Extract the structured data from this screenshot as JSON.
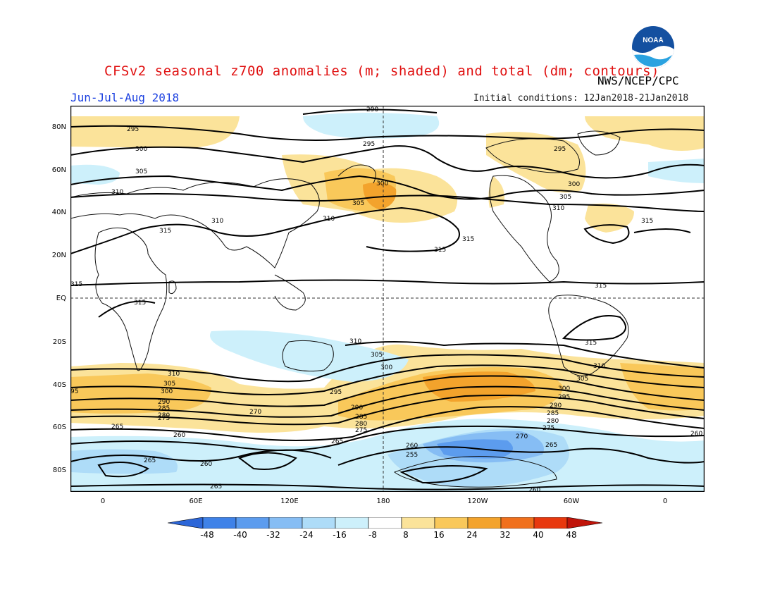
{
  "header": {
    "title": "CFSv2 seasonal z700 anomalies (m; shaded) and total (dm; contours)",
    "agency": "NWS/NCEP/CPC",
    "season": "Jun-Jul-Aug 2018",
    "initial_conditions": "Initial conditions: 12Jan2018-21Jan2018",
    "logo_text": "NOAA"
  },
  "map": {
    "lat_labels": [
      "80N",
      "60N",
      "40N",
      "20N",
      "EQ",
      "20S",
      "40S",
      "60S",
      "80S"
    ],
    "lon_labels": [
      "0",
      "60E",
      "120E",
      "180",
      "120W",
      "60W",
      "0"
    ],
    "contour_labels": {
      "c290": "290",
      "c295": "295",
      "c300": "300",
      "c305": "305",
      "c310": "310",
      "c315": "315",
      "c285": "285",
      "c280": "280",
      "c275": "275",
      "c270": "270",
      "c265": "265",
      "c260": "260",
      "c255": "255",
      "c95": "95"
    }
  },
  "colorbar": {
    "ticks": [
      "-48",
      "-40",
      "-32",
      "-24",
      "-16",
      "-8",
      "8",
      "16",
      "24",
      "32",
      "40",
      "48"
    ],
    "colors": [
      "#2c66d8",
      "#3f82e8",
      "#5c9cee",
      "#86bdf4",
      "#aedcf8",
      "#cdf0fb",
      "#ffffff",
      "#fbe39a",
      "#f9c85a",
      "#f3a32c",
      "#f0701c",
      "#e8380e",
      "#c0140a"
    ]
  }
}
